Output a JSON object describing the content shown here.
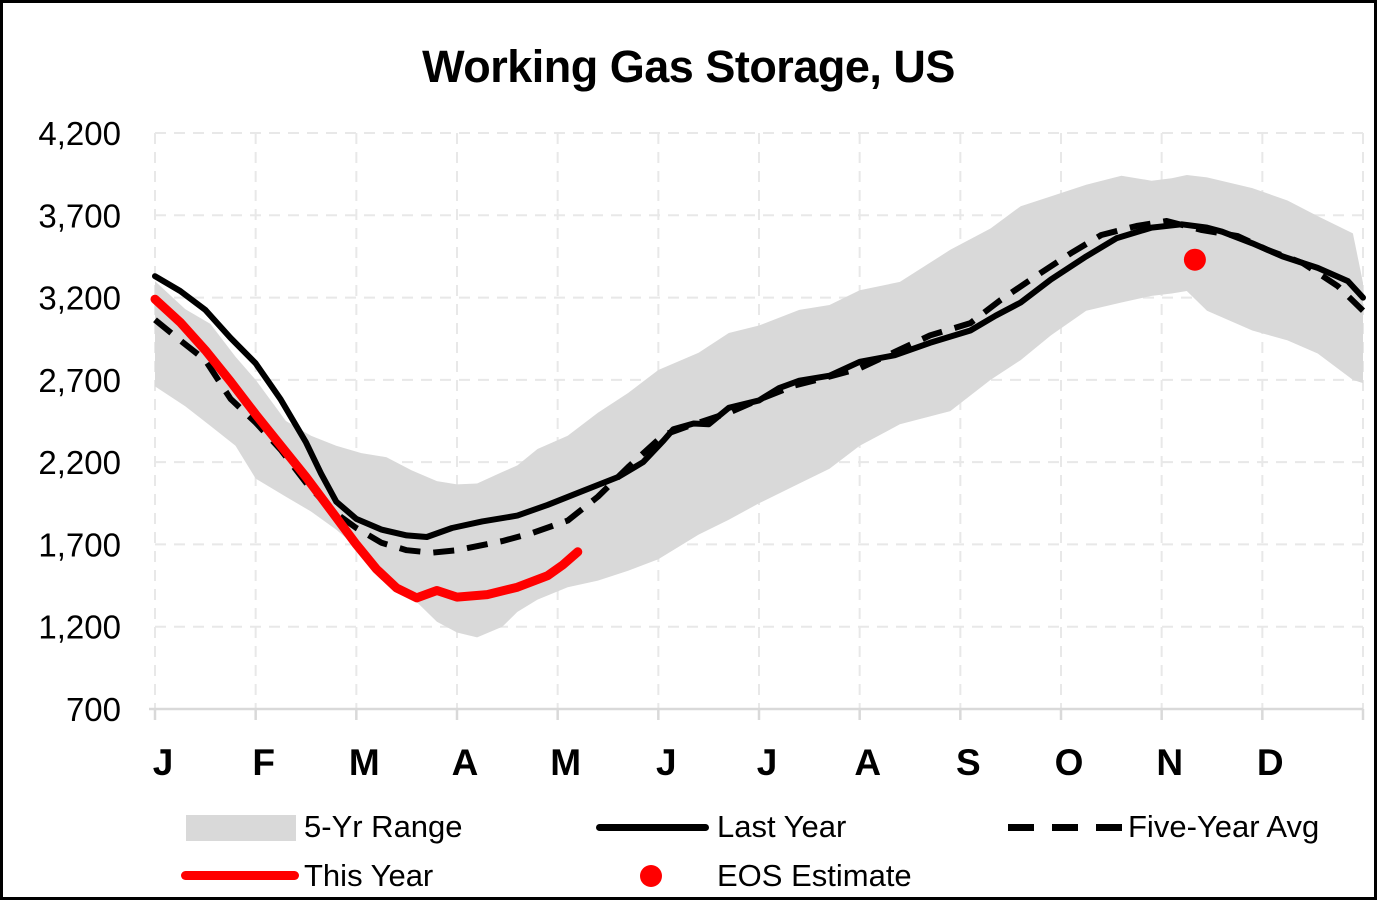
{
  "title": "Working Gas Storage, US",
  "colors": {
    "band": "#D9D9D9",
    "line_black": "#000000",
    "line_red": "#FF0000",
    "gridline": "#E8E8E8",
    "axis": "#D9D9D9",
    "text": "#000000"
  },
  "chart_data": {
    "type": "line",
    "title": "Working Gas Storage, US",
    "xlabel": "",
    "ylabel": "",
    "x_axis": {
      "unit": "months",
      "range": [
        0,
        12
      ],
      "tick_labels": [
        "J",
        "F",
        "M",
        "A",
        "M",
        "J",
        "J",
        "A",
        "S",
        "O",
        "N",
        "D"
      ],
      "gridlines": "dashed"
    },
    "y_axis": {
      "range": [
        700,
        4200
      ],
      "ticks": [
        4200,
        3700,
        3200,
        2700,
        2200,
        1700,
        1200,
        700
      ],
      "tick_format": "comma",
      "gridlines": "dashed"
    },
    "legend_position": "bottom",
    "band": {
      "name": "5-Yr Range",
      "color": "#D9D9D9",
      "points": [
        [
          0,
          2660,
          3300
        ],
        [
          0.3,
          2540,
          3130
        ],
        [
          0.55,
          2420,
          3040
        ],
        [
          0.8,
          2300,
          2840
        ],
        [
          1,
          2100,
          2700
        ],
        [
          1.3,
          1990,
          2450
        ],
        [
          1.55,
          1900,
          2360
        ],
        [
          1.8,
          1790,
          2300
        ],
        [
          2.05,
          1660,
          2255
        ],
        [
          2.3,
          1520,
          2230
        ],
        [
          2.55,
          1380,
          2150
        ],
        [
          2.8,
          1230,
          2085
        ],
        [
          3,
          1165,
          2065
        ],
        [
          3.2,
          1135,
          2070
        ],
        [
          3.45,
          1200,
          2140
        ],
        [
          3.6,
          1290,
          2180
        ],
        [
          3.8,
          1365,
          2280
        ],
        [
          4.1,
          1440,
          2360
        ],
        [
          4.4,
          1480,
          2500
        ],
        [
          4.7,
          1540,
          2620
        ],
        [
          5,
          1610,
          2760
        ],
        [
          5.4,
          1760,
          2865
        ],
        [
          5.7,
          1850,
          2985
        ],
        [
          6,
          1950,
          3030
        ],
        [
          6.4,
          2070,
          3125
        ],
        [
          6.7,
          2160,
          3155
        ],
        [
          7,
          2300,
          3245
        ],
        [
          7.4,
          2430,
          3295
        ],
        [
          7.9,
          2510,
          3490
        ],
        [
          8.3,
          2700,
          3620
        ],
        [
          8.6,
          2820,
          3755
        ],
        [
          8.9,
          2970,
          3815
        ],
        [
          9.25,
          3120,
          3885
        ],
        [
          9.6,
          3170,
          3940
        ],
        [
          9.9,
          3210,
          3910
        ],
        [
          10.1,
          3225,
          3925
        ],
        [
          10.25,
          3240,
          3945
        ],
        [
          10.45,
          3120,
          3930
        ],
        [
          10.9,
          3000,
          3865
        ],
        [
          11.25,
          2940,
          3790
        ],
        [
          11.55,
          2860,
          3695
        ],
        [
          11.9,
          2700,
          3590
        ],
        [
          12,
          2680,
          3290
        ]
      ]
    },
    "series": [
      {
        "name": "Last Year",
        "style": "solid",
        "color": "#000000",
        "width": 6,
        "points": [
          [
            0,
            3330
          ],
          [
            0.25,
            3240
          ],
          [
            0.5,
            3125
          ],
          [
            0.75,
            2955
          ],
          [
            1,
            2800
          ],
          [
            1.25,
            2580
          ],
          [
            1.5,
            2320
          ],
          [
            1.65,
            2130
          ],
          [
            1.8,
            1960
          ],
          [
            2,
            1855
          ],
          [
            2.25,
            1790
          ],
          [
            2.5,
            1755
          ],
          [
            2.7,
            1745
          ],
          [
            2.95,
            1800
          ],
          [
            3.25,
            1840
          ],
          [
            3.6,
            1875
          ],
          [
            3.9,
            1940
          ],
          [
            4.25,
            2025
          ],
          [
            4.6,
            2110
          ],
          [
            4.85,
            2200
          ],
          [
            5.05,
            2330
          ],
          [
            5.15,
            2400
          ],
          [
            5.35,
            2435
          ],
          [
            5.5,
            2430
          ],
          [
            5.7,
            2530
          ],
          [
            6,
            2575
          ],
          [
            6.2,
            2650
          ],
          [
            6.4,
            2695
          ],
          [
            6.7,
            2725
          ],
          [
            7,
            2810
          ],
          [
            7.35,
            2850
          ],
          [
            7.7,
            2925
          ],
          [
            8.1,
            3000
          ],
          [
            8.35,
            3090
          ],
          [
            8.6,
            3170
          ],
          [
            8.9,
            3310
          ],
          [
            9.25,
            3450
          ],
          [
            9.55,
            3560
          ],
          [
            9.9,
            3625
          ],
          [
            10.2,
            3645
          ],
          [
            10.45,
            3625
          ],
          [
            10.6,
            3600
          ],
          [
            10.9,
            3530
          ],
          [
            11.2,
            3450
          ],
          [
            11.55,
            3380
          ],
          [
            11.85,
            3300
          ],
          [
            12,
            3200
          ]
        ]
      },
      {
        "name": "Five-Year Avg",
        "style": "dashed",
        "color": "#000000",
        "width": 6,
        "points": [
          [
            0,
            3065
          ],
          [
            0.25,
            2940
          ],
          [
            0.5,
            2820
          ],
          [
            0.75,
            2585
          ],
          [
            1,
            2440
          ],
          [
            1.25,
            2275
          ],
          [
            1.5,
            2075
          ],
          [
            1.75,
            1910
          ],
          [
            2,
            1800
          ],
          [
            2.25,
            1710
          ],
          [
            2.5,
            1665
          ],
          [
            2.75,
            1650
          ],
          [
            3,
            1665
          ],
          [
            3.45,
            1720
          ],
          [
            3.75,
            1770
          ],
          [
            4.1,
            1845
          ],
          [
            4.4,
            1990
          ],
          [
            4.7,
            2170
          ],
          [
            5.05,
            2365
          ],
          [
            5.35,
            2430
          ],
          [
            5.7,
            2500
          ],
          [
            6,
            2580
          ],
          [
            6.35,
            2665
          ],
          [
            6.7,
            2720
          ],
          [
            7,
            2770
          ],
          [
            7.35,
            2870
          ],
          [
            7.7,
            2970
          ],
          [
            8.1,
            3045
          ],
          [
            8.4,
            3185
          ],
          [
            8.75,
            3330
          ],
          [
            9.1,
            3470
          ],
          [
            9.4,
            3580
          ],
          [
            9.75,
            3635
          ],
          [
            10.05,
            3665
          ],
          [
            10.4,
            3610
          ],
          [
            10.75,
            3575
          ],
          [
            11.05,
            3490
          ],
          [
            11.4,
            3410
          ],
          [
            11.75,
            3270
          ],
          [
            12,
            3120
          ]
        ]
      },
      {
        "name": "This Year",
        "style": "solid",
        "color": "#FF0000",
        "width": 9,
        "points": [
          [
            0,
            3190
          ],
          [
            0.25,
            3050
          ],
          [
            0.5,
            2880
          ],
          [
            0.75,
            2690
          ],
          [
            1,
            2490
          ],
          [
            1.25,
            2300
          ],
          [
            1.5,
            2110
          ],
          [
            1.75,
            1905
          ],
          [
            2,
            1700
          ],
          [
            2.2,
            1550
          ],
          [
            2.4,
            1435
          ],
          [
            2.6,
            1375
          ],
          [
            2.8,
            1420
          ],
          [
            3,
            1380
          ],
          [
            3.3,
            1395
          ],
          [
            3.6,
            1440
          ],
          [
            3.9,
            1510
          ],
          [
            4.05,
            1575
          ],
          [
            4.2,
            1655
          ]
        ]
      }
    ],
    "markers": [
      {
        "name": "EOS Estimate",
        "color": "#FF0000",
        "x": 10.33,
        "y": 3430,
        "radius": 11
      }
    ]
  },
  "legend": {
    "items": [
      {
        "label": "5-Yr Range",
        "swatch": "gray-band"
      },
      {
        "label": "Last Year",
        "swatch": "black-solid-line"
      },
      {
        "label": "Five-Year Avg",
        "swatch": "black-dashed-line"
      },
      {
        "label": "This Year",
        "swatch": "red-line"
      },
      {
        "label": "EOS Estimate",
        "swatch": "red-dot"
      }
    ]
  }
}
